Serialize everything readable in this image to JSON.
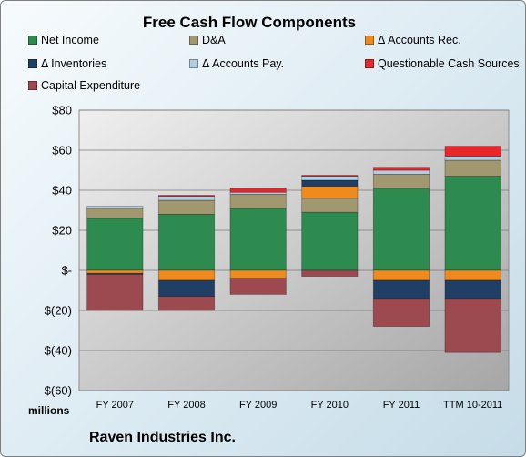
{
  "chart_data": {
    "type": "bar",
    "stacked": true,
    "title": "Free Cash Flow Components",
    "units": "millions",
    "footer": "Raven Industries Inc.",
    "categories": [
      "FY 2007",
      "FY 2008",
      "FY 2009",
      "FY 2010",
      "FY 2011",
      "TTM 10-2011"
    ],
    "ylim": [
      -60,
      80
    ],
    "yticks": [
      80,
      60,
      40,
      20,
      0,
      -20,
      -40,
      -60
    ],
    "ytick_labels": [
      "$80",
      "$60",
      "$40",
      "$20",
      "$-",
      "$(20)",
      "$(40)",
      "$(60)"
    ],
    "grid": true,
    "legend_position": "top",
    "series": [
      {
        "name": "Net Income",
        "color": "#2e8b4f",
        "values": [
          26,
          28,
          31,
          29,
          41,
          47
        ]
      },
      {
        "name": "D&A",
        "color": "#a29870",
        "values": [
          5,
          7,
          7,
          7,
          7,
          8
        ]
      },
      {
        "name": "Δ Accounts Rec.",
        "color": "#ef8a1e",
        "values": [
          -1.5,
          -5,
          -4,
          6,
          -5,
          -5
        ]
      },
      {
        "name": "Δ Inventories",
        "color": "#1f3f66",
        "values": [
          -0.5,
          -8,
          0,
          3,
          -9,
          -9
        ]
      },
      {
        "name": "Δ Accounts Pay.",
        "color": "#b3cde0",
        "values": [
          1,
          2,
          1,
          2,
          2,
          2
        ]
      },
      {
        "name": "Questionable Cash Sources",
        "color": "#e8262b",
        "values": [
          0,
          0.5,
          2,
          0.5,
          1.5,
          5
        ]
      },
      {
        "name": "Capital Expenditure",
        "color": "#9c4a4f",
        "values": [
          -18,
          -7,
          -8,
          -3,
          -14,
          -27
        ]
      }
    ]
  }
}
